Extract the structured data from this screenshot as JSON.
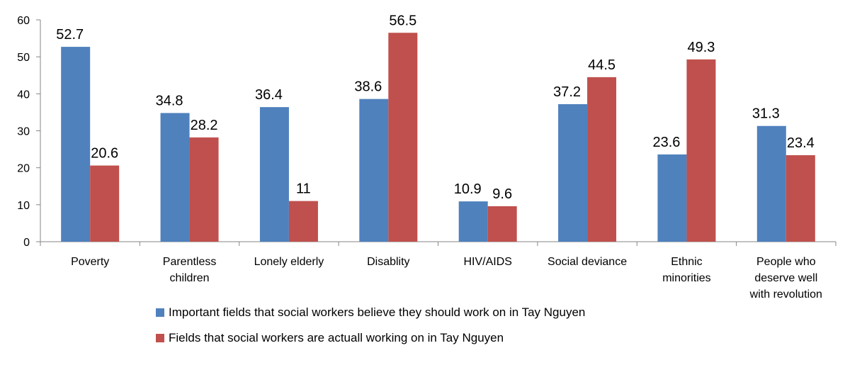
{
  "chart_data": {
    "type": "bar",
    "categories": [
      [
        "Poverty"
      ],
      [
        "Parentless",
        "children"
      ],
      [
        "Lonely elderly"
      ],
      [
        "Disablity"
      ],
      [
        "HIV/AIDS"
      ],
      [
        "Social deviance"
      ],
      [
        "Ethnic",
        "minorities"
      ],
      [
        "People who",
        "deserve well",
        "with revolution"
      ]
    ],
    "series": [
      {
        "name": "Important fields that social workers believe they should work on in Tay Nguyen",
        "color": "#4f81bd",
        "values": [
          52.7,
          34.8,
          36.4,
          38.6,
          10.9,
          37.2,
          23.6,
          31.3
        ],
        "labels": [
          "52.7",
          "34.8",
          "36.4",
          "38.6",
          "10.9",
          "37.2",
          "23.6",
          "31.3"
        ]
      },
      {
        "name": "Fields that social workers are actuall working on in Tay Nguyen",
        "color": "#c0504d",
        "values": [
          20.6,
          28.2,
          11,
          56.5,
          9.6,
          44.5,
          49.3,
          23.4
        ],
        "labels": [
          "20.6",
          "28.2",
          "11",
          "56.5",
          "9.6",
          "44.5",
          "49.3",
          "23.4"
        ]
      }
    ],
    "yticks": [
      "0",
      "10",
      "20",
      "30",
      "40",
      "50",
      "60"
    ],
    "ylim": [
      0,
      60
    ],
    "grid": false,
    "legend_position": "bottom"
  }
}
